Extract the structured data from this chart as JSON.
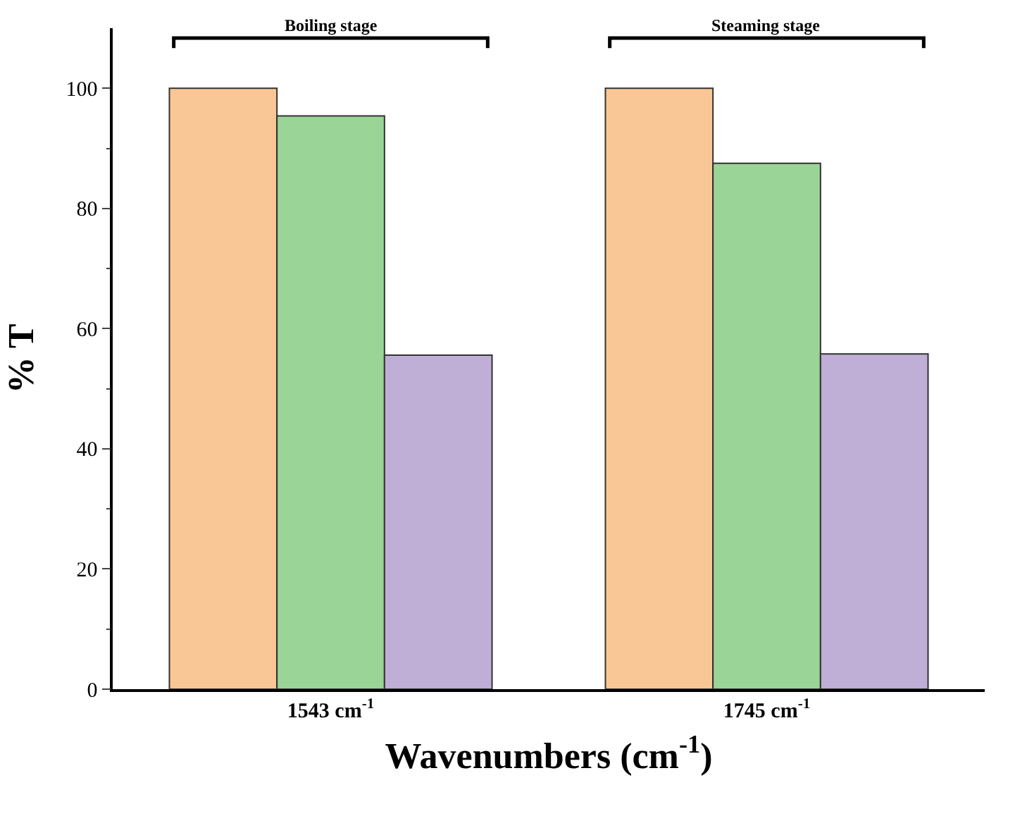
{
  "chart_data": {
    "type": "bar",
    "categories": [
      "1543 cm$^{-1}$",
      "1745 cm$^{-1}$"
    ],
    "series": [
      {
        "color": "#f9c795",
        "values": [
          100,
          100
        ]
      },
      {
        "color": "#9ad597",
        "values": [
          95.4,
          87.5
        ]
      },
      {
        "color": "#bfaed6",
        "values": [
          55.6,
          55.8
        ]
      }
    ],
    "xlabel": "Wavenumbers (cm$^{-1}$)",
    "ylabel": "% T",
    "ylim": [
      0,
      110
    ],
    "yticks": [
      0,
      20,
      40,
      60,
      80,
      100
    ],
    "annotations": [
      "Boiling stage",
      "Steaming stage"
    ]
  }
}
